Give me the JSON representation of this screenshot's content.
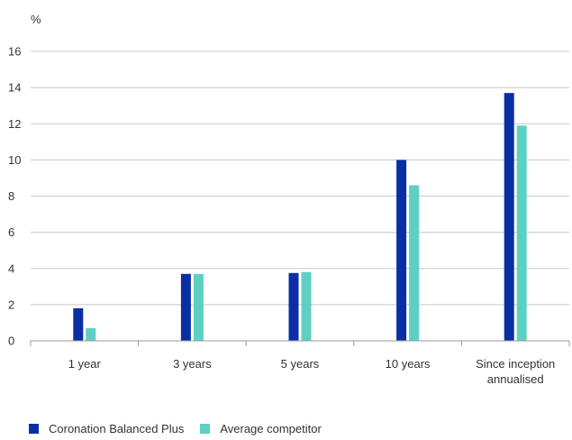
{
  "chart_data": {
    "type": "bar",
    "ylabel": "%",
    "ylim": [
      0,
      16
    ],
    "yticks": [
      0,
      2,
      4,
      6,
      8,
      10,
      12,
      14,
      16
    ],
    "grid": true,
    "legend_position": "bottom-left",
    "categories": [
      [
        "1 year"
      ],
      [
        "3 years"
      ],
      [
        "5 years"
      ],
      [
        "10 years"
      ],
      [
        "Since inception",
        "annualised"
      ]
    ],
    "series": [
      {
        "name": "Coronation Balanced Plus",
        "color": "#0a2fa5",
        "values": [
          1.8,
          3.7,
          3.75,
          10.0,
          13.7
        ]
      },
      {
        "name": "Average competitor",
        "color": "#5ecfc3",
        "values": [
          0.7,
          3.7,
          3.8,
          8.6,
          11.9
        ]
      }
    ]
  }
}
